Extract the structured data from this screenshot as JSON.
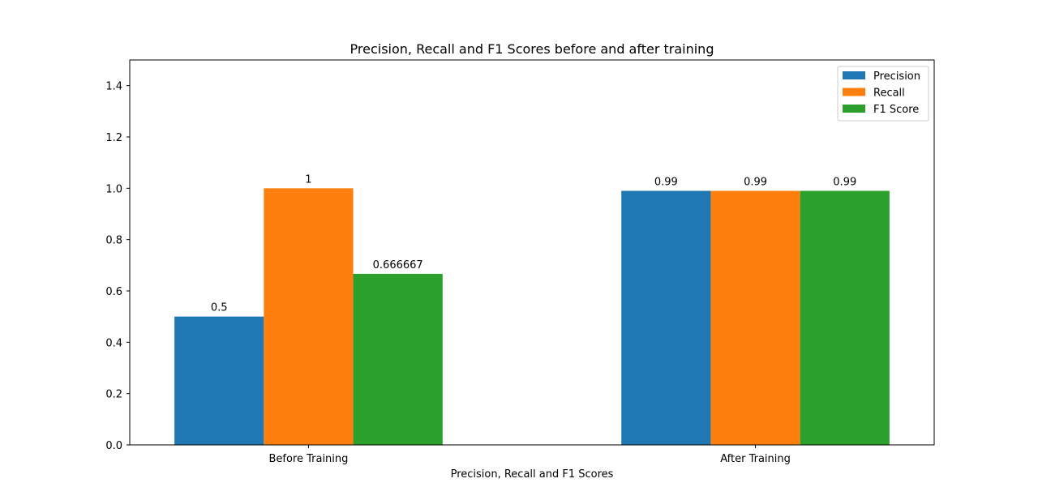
{
  "chart_data": {
    "type": "bar",
    "title": "Precision, Recall and F1 Scores before and after training",
    "xlabel": "Precision, Recall and F1 Scores",
    "ylabel": "",
    "categories": [
      "Before Training",
      "After Training"
    ],
    "ylim": [
      0,
      1.5
    ],
    "yticks": [
      0.0,
      0.2,
      0.4,
      0.6,
      0.8,
      1.0,
      1.2,
      1.4
    ],
    "ytick_labels": [
      "0.0",
      "0.2",
      "0.4",
      "0.6",
      "0.8",
      "1.0",
      "1.2",
      "1.4"
    ],
    "grid": false,
    "legend_position": "top-right",
    "series": [
      {
        "name": "Precision",
        "color": "#1f77b4",
        "values": [
          0.5,
          0.99
        ],
        "labels": [
          "0.5",
          "0.99"
        ]
      },
      {
        "name": "Recall",
        "color": "#ff7f0e",
        "values": [
          1.0,
          0.99
        ],
        "labels": [
          "1",
          "0.99"
        ]
      },
      {
        "name": "F1 Score",
        "color": "#2ca02c",
        "values": [
          0.666667,
          0.99
        ],
        "labels": [
          "0.666667",
          "0.99"
        ]
      }
    ]
  }
}
